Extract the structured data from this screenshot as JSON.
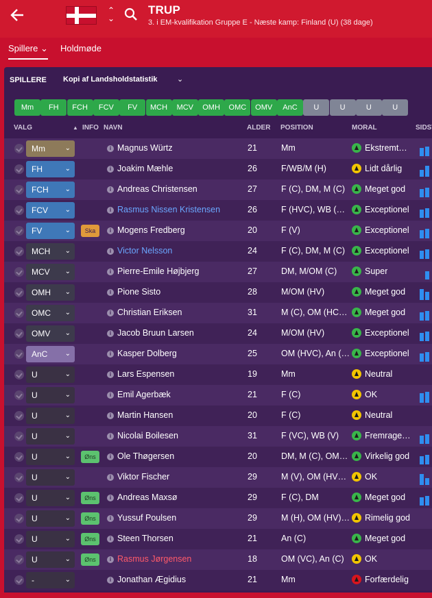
{
  "header": {
    "title": "TRUP",
    "subtitle": "3. i EM-kvalifikation Gruppe E - Næste kamp: Finland (U) (38 dage)"
  },
  "tabs": [
    {
      "label": "Spillere ⌄"
    },
    {
      "label": "Holdmøde"
    }
  ],
  "panel": {
    "label": "SPILLERE",
    "view": "Kopi af Landsholdstatistik"
  },
  "filters": [
    "Mm",
    "FH",
    "FCH",
    "FCV",
    "FV",
    "MCH",
    "MCV",
    "OMH",
    "OMC",
    "OMV",
    "AnC",
    "U",
    "U",
    "U",
    "U"
  ],
  "columns": {
    "valg": "VALG",
    "info": "INFO",
    "navn": "NAVN",
    "alder": "ALDER",
    "position": "POSITION",
    "moral": "MORAL",
    "sidst": "SIDST"
  },
  "players": [
    {
      "sel": "Mm",
      "badge": "",
      "name": "Magnus Würtz",
      "age": "21",
      "pos": "Mm",
      "moral": "Ekstremt…",
      "mc": "g"
    },
    {
      "sel": "FH",
      "badge": "",
      "name": "Joakim Mæhle",
      "age": "26",
      "pos": "F/WB/M (H)",
      "moral": "Lidt dårlig",
      "mc": "y"
    },
    {
      "sel": "FCH",
      "badge": "",
      "name": "Andreas Christensen",
      "age": "27",
      "pos": "F (C), DM, M (C)",
      "moral": "Meget god",
      "mc": "g"
    },
    {
      "sel": "FCV",
      "badge": "",
      "name": "Rasmus Nissen Kristensen",
      "age": "26",
      "pos": "F (HVC), WB (H…",
      "moral": "Exceptionel",
      "mc": "g"
    },
    {
      "sel": "FV",
      "badge": "Ska",
      "name": "Mogens Fredberg",
      "age": "20",
      "pos": "F (V)",
      "moral": "Exceptionel",
      "mc": "g"
    },
    {
      "sel": "MCH",
      "badge": "",
      "name": "Victor Nelsson",
      "age": "24",
      "pos": "F (C), DM, M (C)",
      "moral": "Exceptionel",
      "mc": "g"
    },
    {
      "sel": "MCV",
      "badge": "",
      "name": "Pierre-Emile Højbjerg",
      "age": "27",
      "pos": "DM, M/OM (C)",
      "moral": "Super",
      "mc": "g"
    },
    {
      "sel": "OMH",
      "badge": "",
      "name": "Pione Sisto",
      "age": "28",
      "pos": "M/OM (HV)",
      "moral": "Meget god",
      "mc": "g"
    },
    {
      "sel": "OMC",
      "badge": "",
      "name": "Christian Eriksen",
      "age": "31",
      "pos": "M (C), OM (HC),…",
      "moral": "Meget god",
      "mc": "g"
    },
    {
      "sel": "OMV",
      "badge": "",
      "name": "Jacob Bruun Larsen",
      "age": "24",
      "pos": "M/OM (HV)",
      "moral": "Exceptionel",
      "mc": "g"
    },
    {
      "sel": "AnC",
      "badge": "",
      "name": "Kasper Dolberg",
      "age": "25",
      "pos": "OM (HVC), An (…",
      "moral": "Exceptionel",
      "mc": "g"
    },
    {
      "sel": "U",
      "badge": "",
      "name": "Lars Espensen",
      "age": "19",
      "pos": "Mm",
      "moral": "Neutral",
      "mc": "y"
    },
    {
      "sel": "U",
      "badge": "",
      "name": "Emil Agerbæk",
      "age": "21",
      "pos": "F (C)",
      "moral": "OK",
      "mc": "y"
    },
    {
      "sel": "U",
      "badge": "",
      "name": "Martin Hansen",
      "age": "20",
      "pos": "F (C)",
      "moral": "Neutral",
      "mc": "y"
    },
    {
      "sel": "U",
      "badge": "",
      "name": "Nicolai Boilesen",
      "age": "31",
      "pos": "F (VC), WB (V)",
      "moral": "Fremrage…",
      "mc": "g"
    },
    {
      "sel": "U",
      "badge": "Øns",
      "name": "Ole Thøgersen",
      "age": "20",
      "pos": "DM, M (C), OM (…",
      "moral": "Virkelig god",
      "mc": "g"
    },
    {
      "sel": "U",
      "badge": "",
      "name": "Viktor Fischer",
      "age": "29",
      "pos": "M (V), OM (HVC…",
      "moral": "OK",
      "mc": "y"
    },
    {
      "sel": "U",
      "badge": "Øns",
      "name": "Andreas Maxsø",
      "age": "29",
      "pos": "F (C), DM",
      "moral": "Meget god",
      "mc": "g"
    },
    {
      "sel": "U",
      "badge": "Øns",
      "name": "Yussuf Poulsen",
      "age": "29",
      "pos": "M (H), OM (HV),…",
      "moral": "Rimelig god",
      "mc": "y"
    },
    {
      "sel": "U",
      "badge": "Øns",
      "name": "Steen Thorsen",
      "age": "21",
      "pos": "An (C)",
      "moral": "Meget god",
      "mc": "g"
    },
    {
      "sel": "U",
      "badge": "Øns",
      "name": "Rasmus Jørgensen",
      "age": "18",
      "pos": "OM (VC), An (C)",
      "moral": "OK",
      "mc": "y"
    },
    {
      "sel": "-",
      "badge": "",
      "name": "Jonathan Ægidius",
      "age": "21",
      "pos": "Mm",
      "moral": "Forfærdelig",
      "mc": "r"
    }
  ]
}
